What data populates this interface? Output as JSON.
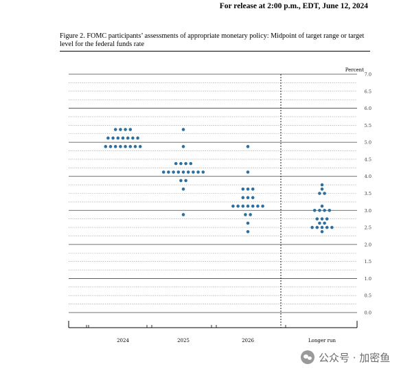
{
  "header": {
    "release": "For release at 2:00 p.m., EDT, June 12, 2024"
  },
  "figure": {
    "caption": "Figure 2.  FOMC participants’ assessments of appropriate monetary policy: Midpoint of target range or target level for the federal funds rate"
  },
  "watermark": {
    "text": "公众号 · 加密鱼"
  },
  "chart_data": {
    "type": "scatter",
    "title": "",
    "xlabel": "",
    "ylabel": "Percent",
    "ylim": [
      0.0,
      7.0
    ],
    "y_ticks": [
      "7.0",
      "6.5",
      "6.0",
      "5.5",
      "5.0",
      "4.5",
      "4.0",
      "3.5",
      "3.0",
      "2.5",
      "2.0",
      "1.5",
      "1.0",
      "0.5",
      "0.0"
    ],
    "gridlines": "horizontal dotted every 0.25, solid at whole percents",
    "dot_color": "#2e6f9e",
    "categories": [
      "2024",
      "2025",
      "2026",
      "Longer run"
    ],
    "dots": [
      {
        "category": "2024",
        "counts": [
          {
            "y": 5.375,
            "count": 4
          },
          {
            "y": 5.125,
            "count": 7
          },
          {
            "y": 4.875,
            "count": 8
          }
        ]
      },
      {
        "category": "2025",
        "counts": [
          {
            "y": 5.375,
            "count": 1
          },
          {
            "y": 4.875,
            "count": 1
          },
          {
            "y": 4.375,
            "count": 4
          },
          {
            "y": 4.125,
            "count": 9
          },
          {
            "y": 3.875,
            "count": 2
          },
          {
            "y": 3.625,
            "count": 1
          },
          {
            "y": 2.875,
            "count": 1
          }
        ]
      },
      {
        "category": "2026",
        "counts": [
          {
            "y": 4.875,
            "count": 1
          },
          {
            "y": 4.125,
            "count": 1
          },
          {
            "y": 3.625,
            "count": 3
          },
          {
            "y": 3.375,
            "count": 3
          },
          {
            "y": 3.125,
            "count": 7
          },
          {
            "y": 2.875,
            "count": 2
          },
          {
            "y": 2.625,
            "count": 1
          },
          {
            "y": 2.375,
            "count": 1
          }
        ]
      },
      {
        "category": "Longer run",
        "counts": [
          {
            "y": 3.75,
            "count": 1
          },
          {
            "y": 3.625,
            "count": 1
          },
          {
            "y": 3.5,
            "count": 2
          },
          {
            "y": 3.125,
            "count": 1
          },
          {
            "y": 3.0,
            "count": 4
          },
          {
            "y": 2.75,
            "count": 3
          },
          {
            "y": 2.625,
            "count": 2
          },
          {
            "y": 2.5,
            "count": 5
          },
          {
            "y": 2.375,
            "count": 1
          }
        ]
      }
    ]
  }
}
